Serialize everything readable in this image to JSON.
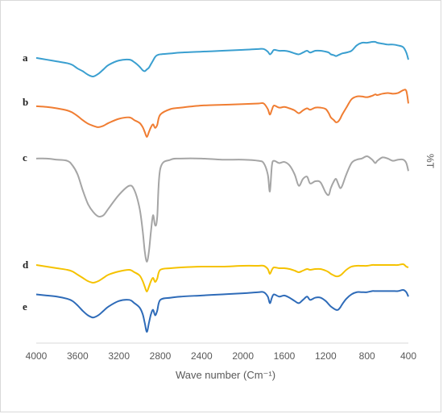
{
  "chart_data": {
    "type": "line",
    "xlabel": "Wave number (Cm⁻¹)",
    "ylabel": "%T",
    "xlim": [
      4000,
      400
    ],
    "x_reversed": true,
    "grid": false,
    "xticks": [
      "4000",
      "3600",
      "3200",
      "2800",
      "2400",
      "2000",
      "1600",
      "1200",
      "800",
      "400"
    ],
    "x": [
      4000,
      3900,
      3800,
      3700,
      3650,
      3600,
      3550,
      3500,
      3450,
      3400,
      3350,
      3300,
      3200,
      3100,
      3050,
      3000,
      2970,
      2950,
      2930,
      2910,
      2890,
      2870,
      2850,
      2830,
      2800,
      2700,
      2600,
      2400,
      2200,
      2000,
      1850,
      1800,
      1760,
      1740,
      1720,
      1700,
      1650,
      1600,
      1550,
      1500,
      1460,
      1420,
      1380,
      1350,
      1300,
      1250,
      1200,
      1170,
      1150,
      1120,
      1100,
      1080,
      1060,
      1040,
      1000,
      950,
      900,
      850,
      800,
      750,
      720,
      700,
      650,
      600,
      550,
      500,
      450,
      420,
      400
    ],
    "series": [
      {
        "name": "a",
        "color": "#3a9fd0",
        "values": [
          76,
          74,
          72,
          70,
          68,
          64,
          61,
          57,
          55,
          58,
          63,
          68,
          73,
          74,
          71,
          66,
          62,
          61,
          63,
          65,
          69,
          73,
          77,
          79,
          80,
          81,
          82,
          83,
          84,
          85,
          86,
          86,
          83,
          80,
          82,
          85,
          84,
          84,
          83,
          81,
          80,
          82,
          84,
          82,
          84,
          84,
          83,
          82,
          80,
          79,
          78,
          79,
          80,
          81,
          82,
          84,
          90,
          93,
          93,
          94,
          94,
          93,
          92,
          91,
          91,
          90,
          88,
          82,
          74
        ]
      },
      {
        "name": "b",
        "color": "#f07d32",
        "values": [
          72,
          71,
          69,
          66,
          63,
          58,
          52,
          47,
          44,
          42,
          44,
          48,
          54,
          56,
          52,
          48,
          42,
          35,
          28,
          35,
          42,
          46,
          41,
          45,
          60,
          68,
          70,
          73,
          74,
          75,
          76,
          76,
          68,
          60,
          67,
          73,
          70,
          71,
          69,
          66,
          62,
          66,
          69,
          67,
          70,
          70,
          68,
          62,
          56,
          52,
          49,
          50,
          54,
          60,
          70,
          82,
          86,
          86,
          85,
          87,
          89,
          88,
          90,
          91,
          90,
          91,
          95,
          94,
          76
        ]
      },
      {
        "name": "c",
        "color": "#a5a5a5",
        "values": [
          94,
          94,
          93,
          92,
          88,
          80,
          66,
          54,
          47,
          43,
          44,
          50,
          62,
          70,
          66,
          50,
          30,
          12,
          3,
          12,
          30,
          44,
          35,
          42,
          85,
          93,
          94,
          94,
          93,
          93,
          92,
          90,
          80,
          65,
          88,
          92,
          90,
          91,
          88,
          80,
          70,
          76,
          78,
          72,
          74,
          73,
          64,
          62,
          68,
          74,
          76,
          72,
          68,
          70,
          80,
          90,
          93,
          94,
          96,
          93,
          90,
          92,
          95,
          94,
          92,
          93,
          93,
          90,
          83
        ]
      },
      {
        "name": "d",
        "color": "#f5c200",
        "values": [
          75,
          73,
          71,
          69,
          67,
          63,
          59,
          55,
          53,
          55,
          59,
          63,
          67,
          69,
          66,
          62,
          55,
          48,
          42,
          48,
          55,
          59,
          54,
          58,
          69,
          71,
          72,
          73,
          73,
          74,
          74,
          74,
          70,
          64,
          69,
          72,
          71,
          71,
          70,
          68,
          66,
          68,
          70,
          69,
          70,
          70,
          68,
          66,
          64,
          62,
          61,
          61,
          62,
          64,
          69,
          73,
          74,
          74,
          74,
          75,
          75,
          75,
          75,
          75,
          75,
          75,
          76,
          73,
          72
        ]
      },
      {
        "name": "e",
        "color": "#2e6bb8",
        "values": [
          72,
          71,
          70,
          68,
          66,
          62,
          57,
          53,
          51,
          53,
          57,
          61,
          66,
          67,
          64,
          60,
          54,
          46,
          38,
          46,
          54,
          58,
          53,
          57,
          67,
          69,
          70,
          71,
          72,
          73,
          74,
          74,
          70,
          64,
          69,
          72,
          70,
          71,
          69,
          66,
          64,
          67,
          70,
          67,
          69,
          69,
          66,
          63,
          61,
          59,
          58,
          58,
          60,
          63,
          68,
          72,
          74,
          74,
          74,
          75,
          75,
          75,
          75,
          75,
          75,
          75,
          76,
          74,
          70
        ]
      }
    ]
  }
}
